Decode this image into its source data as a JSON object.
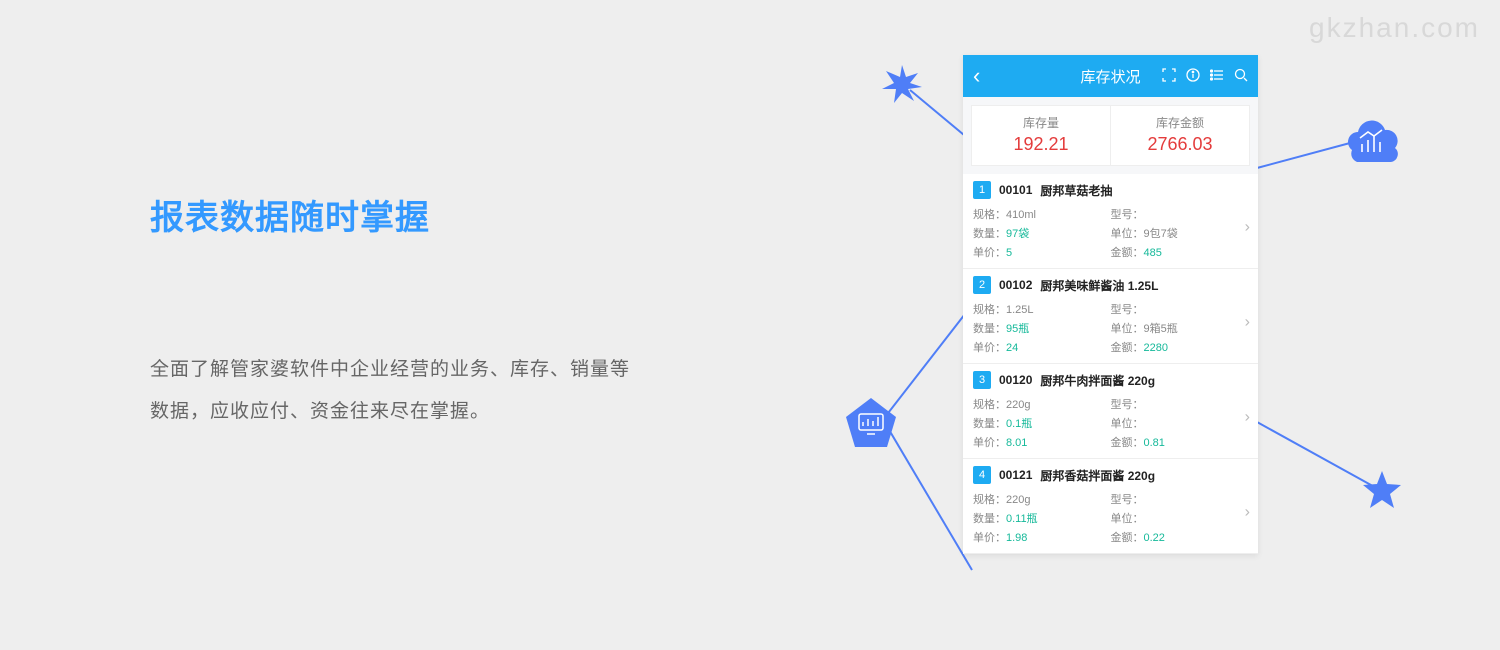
{
  "watermark": "gkzhan.com",
  "headline": "报表数据随时掌握",
  "body": "全面了解管家婆软件中企业经营的业务、库存、销量等数据，应收应付、资金往来尽在掌握。",
  "phone": {
    "title": "库存状况",
    "summary": [
      {
        "label": "库存量",
        "value": "192.21"
      },
      {
        "label": "库存金额",
        "value": "2766.03"
      }
    ],
    "items": [
      {
        "num": "1",
        "code": "00101",
        "name": "厨邦草菇老抽",
        "spec": "410ml",
        "model": "",
        "qty": "97袋",
        "unit": "9包7袋",
        "price": "5",
        "amount": "485"
      },
      {
        "num": "2",
        "code": "00102",
        "name": "厨邦美味鲜酱油 1.25L",
        "spec": "1.25L",
        "model": "",
        "qty": "95瓶",
        "unit": "9箱5瓶",
        "price": "24",
        "amount": "2280"
      },
      {
        "num": "3",
        "code": "00120",
        "name": "厨邦牛肉拌面酱 220g",
        "spec": "220g",
        "model": "",
        "qty": "0.1瓶",
        "unit": "",
        "price": "8.01",
        "amount": "0.81"
      },
      {
        "num": "4",
        "code": "00121",
        "name": "厨邦香菇拌面酱 220g",
        "spec": "220g",
        "model": "",
        "qty": "0.11瓶",
        "unit": "",
        "price": "1.98",
        "amount": "0.22"
      }
    ],
    "labels": {
      "spec": "规格：",
      "model": "型号：",
      "qty": "数量：",
      "unit": "单位：",
      "price": "单价：",
      "amount": "金额："
    }
  },
  "colors": {
    "accent": "#3399ff",
    "header": "#1eabf2",
    "red": "#e43c3c",
    "teal": "#16b99a",
    "line": "#4f7ef7"
  }
}
